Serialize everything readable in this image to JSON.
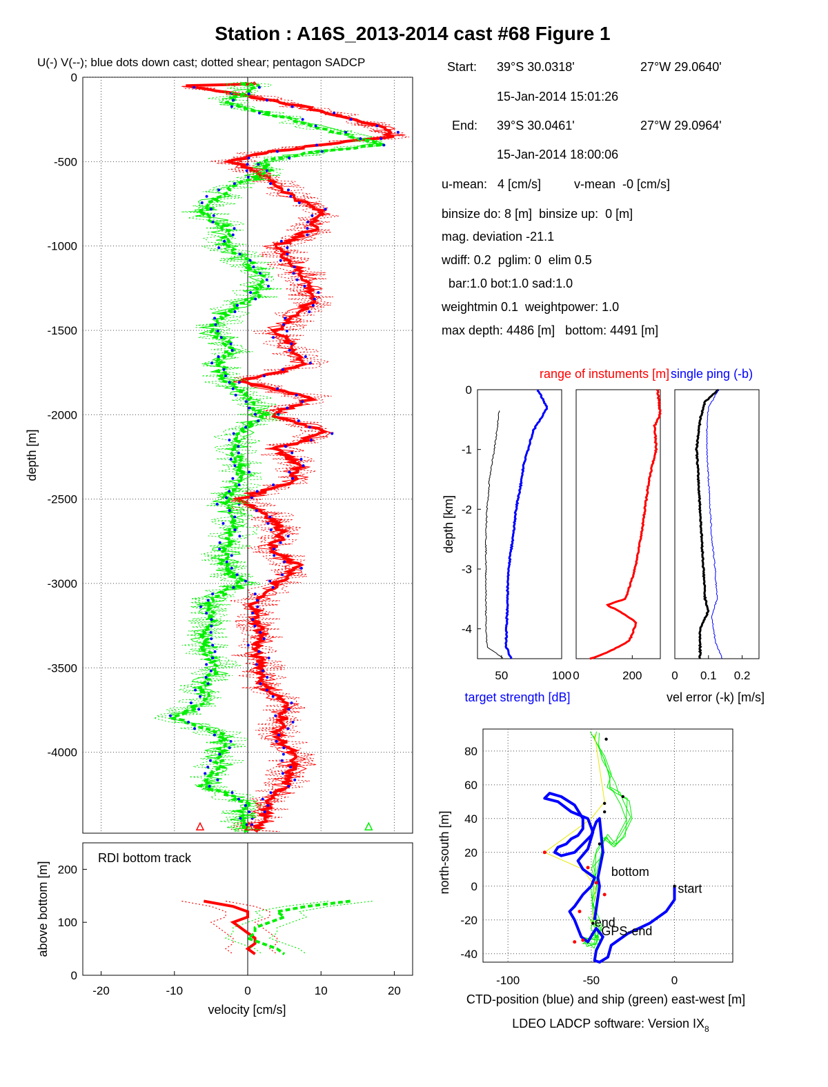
{
  "title": "Station : A16S_2013-2014 cast #68  Figure 1",
  "colors": {
    "u": "#ff0000",
    "v": "#00ee00",
    "blue": "#0000ff",
    "black": "#000000",
    "yellow": "#e8e800"
  },
  "info": {
    "lines": [
      "binsize do: 8 [m]  binsize up:  0 [m]",
      "mag. deviation -21.1",
      "wdiff: 0.2  pglim: 0  elim 0.5",
      "  bar:1.0 bot:1.0 sad:1.0",
      "weightmin 0.1  weightpower: 1.0",
      "max depth: 4486 [m]   bottom: 4491 [m]"
    ],
    "start_label": "Start:",
    "start_lat": "39°S 30.0318'",
    "start_lon": "27°W 29.0640'",
    "start_time": "15-Jan-2014 15:01:26",
    "end_label": "End:",
    "end_lat": "39°S 30.0461'",
    "end_lon": "27°W 29.0964'",
    "end_time": "15-Jan-2014 18:00:06",
    "u_mean": "u-mean:   4 [cm/s]",
    "v_mean": "v-mean  -0 [cm/s]"
  },
  "footer": "LDEO LADCP software: Version IX",
  "footer_sub": "8",
  "chart_data": [
    {
      "type": "line",
      "title": "U(-) V(--); blue dots down cast; dotted shear; pentagon SADCP",
      "xlabel": "",
      "ylabel": "depth [m]",
      "xlim": [
        -22.5,
        22.5
      ],
      "ylim": [
        -4480,
        0
      ],
      "yticks": [
        0,
        -500,
        -1000,
        -1500,
        -2000,
        -2500,
        -3000,
        -3500,
        -4000
      ],
      "grid": true,
      "series": [
        {
          "name": "U",
          "color": "#ff0000",
          "depth": [
            -50,
            -150,
            -250,
            -300,
            -350,
            -400,
            -450,
            -500,
            -550,
            -700,
            -800,
            -900,
            -1000,
            -1100,
            -1200,
            -1300,
            -1400,
            -1500,
            -1600,
            -1700,
            -1800,
            -1900,
            -2000,
            -2100,
            -2200,
            -2300,
            -2400,
            -2500,
            -2600,
            -2700,
            -2800,
            -2900,
            -3000,
            -3100,
            -3200,
            -3300,
            -3400,
            -3500,
            -3600,
            -3700,
            -3800,
            -3900,
            -4000,
            -4100,
            -4200,
            -4300,
            -4400,
            -4460
          ],
          "values": [
            -8,
            5,
            15,
            18,
            20,
            10,
            2,
            -2,
            1,
            6,
            10,
            9,
            4,
            6,
            8,
            9,
            7,
            4,
            6,
            8,
            -1,
            9,
            3,
            11,
            4,
            7,
            6,
            -1,
            3,
            5,
            3,
            7,
            4,
            1,
            1,
            2,
            1,
            2,
            2,
            5,
            5,
            4,
            6,
            6,
            5,
            3,
            2,
            1
          ]
        },
        {
          "name": "V",
          "color": "#00ee00",
          "depth": [
            -50,
            -150,
            -250,
            -300,
            -350,
            -400,
            -450,
            -500,
            -550,
            -700,
            -800,
            -900,
            -1000,
            -1100,
            -1200,
            -1300,
            -1400,
            -1500,
            -1600,
            -1700,
            -1800,
            -1900,
            -2000,
            -2100,
            -2200,
            -2300,
            -2400,
            -2500,
            -2600,
            -2700,
            -2800,
            -2900,
            -3000,
            -3100,
            -3200,
            -3300,
            -3400,
            -3500,
            -3600,
            -3700,
            -3800,
            -3900,
            -4000,
            -4100,
            -4200,
            -4300,
            -4400,
            -4460
          ],
          "values": [
            1,
            -3,
            6,
            10,
            14,
            18,
            8,
            2,
            3,
            -4,
            -6,
            -3,
            -3,
            0,
            2,
            1,
            -3,
            -5,
            -2,
            -4,
            -3,
            0,
            2,
            -1,
            -2,
            -1,
            -1,
            -3,
            -2,
            -2,
            -3,
            -3,
            -1,
            -5,
            -5,
            -6,
            -6,
            -4,
            -6,
            -6,
            -10,
            -3,
            -4,
            -4,
            -6,
            0,
            -1,
            0
          ]
        }
      ]
    },
    {
      "type": "line",
      "title": "RDI bottom track",
      "xlabel": "velocity [cm/s]",
      "ylabel": "above bottom [m]",
      "xlim": [
        -22.5,
        22.5
      ],
      "ylim": [
        0,
        250
      ],
      "xticks": [
        -20,
        -10,
        0,
        10,
        20
      ],
      "yticks": [
        0,
        100,
        200
      ],
      "series": [
        {
          "name": "U",
          "color": "#ff0000",
          "height": [
            140,
            130,
            120,
            110,
            100,
            90,
            80,
            70,
            60,
            50,
            40
          ],
          "values": [
            -6,
            -2,
            0,
            0,
            -2,
            -1,
            0,
            1,
            1,
            0,
            1
          ]
        },
        {
          "name": "V",
          "color": "#00ee00",
          "height": [
            140,
            130,
            120,
            110,
            100,
            90,
            80,
            70,
            60,
            50,
            40
          ],
          "values": [
            14,
            8,
            4,
            5,
            3,
            1,
            1,
            0,
            2,
            4,
            5
          ]
        }
      ]
    },
    {
      "type": "line",
      "title": "",
      "xlabel": "target strength [dB]",
      "ylabel": "depth [km]",
      "xlim": [
        30,
        100
      ],
      "ylim": [
        -4.5,
        0
      ],
      "xticks": [
        50,
        100
      ],
      "yticks": [
        0,
        -1,
        -2,
        -3,
        -4
      ],
      "series": [
        {
          "name": "",
          "color": "#0000ff",
          "depth": [
            0,
            -0.3,
            -0.7,
            -1.0,
            -1.3,
            -1.6,
            -2.0,
            -2.4,
            -2.8,
            -3.2,
            -3.6,
            -4.0,
            -4.3,
            -4.5
          ],
          "values": [
            80,
            88,
            76,
            72,
            68,
            66,
            62,
            60,
            57,
            55,
            55,
            54,
            54,
            58
          ]
        },
        {
          "name": "",
          "color": "#000000",
          "depth": [
            -0.35,
            -0.7,
            -1.0,
            -1.5,
            -2.0,
            -2.5,
            -3.0,
            -3.5,
            -4.0,
            -4.3,
            -4.5
          ],
          "values": [
            48,
            46,
            44,
            40,
            38,
            37,
            37,
            37,
            37,
            38,
            52
          ]
        }
      ]
    },
    {
      "type": "line",
      "title": "range of instuments [m]",
      "xlabel": "",
      "ylabel": "",
      "xlim": [
        0,
        300
      ],
      "ylim": [
        -4.5,
        0
      ],
      "xticks": [
        0,
        200
      ],
      "series": [
        {
          "name": "",
          "color": "#ff0000",
          "depth": [
            0,
            -0.4,
            -0.6,
            -1.0,
            -1.5,
            -2.0,
            -2.5,
            -3.0,
            -3.3,
            -3.5,
            -3.6,
            -3.75,
            -3.9,
            -4.2,
            -4.4,
            -4.5
          ],
          "values": [
            290,
            300,
            280,
            285,
            260,
            245,
            230,
            210,
            190,
            175,
            110,
            170,
            215,
            190,
            110,
            50
          ]
        }
      ]
    },
    {
      "type": "line",
      "title": "single ping (-b)",
      "xlabel": "vel error (-k) [m/s]",
      "ylabel": "",
      "xlim": [
        0,
        0.25
      ],
      "ylim": [
        -4.5,
        0
      ],
      "xticks": [
        0,
        0.1,
        0.2
      ],
      "series": [
        {
          "name": "",
          "color": "#000000",
          "depth": [
            0,
            -0.2,
            -0.5,
            -1.0,
            -1.5,
            -2.0,
            -2.5,
            -3.0,
            -3.5,
            -3.7,
            -4.0,
            -4.5
          ],
          "values": [
            0.13,
            0.09,
            0.075,
            0.065,
            0.07,
            0.075,
            0.08,
            0.085,
            0.09,
            0.1,
            0.075,
            0.075
          ]
        },
        {
          "name": "",
          "color": "#0000ff",
          "depth": [
            0,
            -0.3,
            -0.7,
            -1.0,
            -1.5,
            -2.0,
            -2.5,
            -3.0,
            -3.5,
            -3.8,
            -4.2,
            -4.5
          ],
          "values": [
            0.13,
            0.1,
            0.095,
            0.095,
            0.1,
            0.105,
            0.11,
            0.12,
            0.125,
            0.11,
            0.12,
            0.14
          ]
        }
      ]
    },
    {
      "type": "line",
      "title": "",
      "xlabel": "CTD-position (blue) and ship (green) east-west [m]",
      "ylabel": "north-south [m]",
      "xlim": [
        -115,
        35
      ],
      "ylim": [
        -45,
        93
      ],
      "xticks": [
        -100,
        -50,
        0
      ],
      "yticks": [
        80,
        60,
        40,
        20,
        0,
        -20,
        -40
      ],
      "series": [
        {
          "name": "",
          "color": "#0000ff",
          "x": [
            0,
            0,
            -5,
            -15,
            -28,
            -38,
            -40,
            -45,
            -48,
            -47,
            -43,
            -47,
            -49,
            -52,
            -56,
            -60,
            -63,
            -60,
            -55,
            -50,
            -48,
            -55,
            -58,
            -52,
            -49,
            -52,
            -62,
            -70,
            -78,
            -75,
            -68,
            -60,
            -55,
            -55,
            -58,
            -62,
            -65,
            -70,
            -72,
            -68,
            -60,
            -55,
            -50,
            -47,
            -45,
            -43,
            -46,
            -45,
            -48
          ],
          "y": [
            0,
            -8,
            -15,
            -22,
            -28,
            -35,
            -42,
            -45,
            -44,
            -38,
            -30,
            -25,
            -28,
            -33,
            -30,
            -20,
            -15,
            -12,
            -5,
            0,
            5,
            10,
            15,
            22,
            32,
            40,
            44,
            50,
            52,
            55,
            53,
            48,
            40,
            34,
            30,
            28,
            25,
            23,
            20,
            18,
            20,
            25,
            30,
            38,
            40,
            20,
            5,
            0,
            -20
          ]
        },
        {
          "name": "",
          "color": "#00ee00",
          "x": [
            -48,
            -45,
            -42,
            -40,
            -38,
            -35,
            -30,
            -28,
            -32,
            -38,
            -42,
            -45,
            -47,
            -49,
            -50,
            -48,
            -46,
            -44,
            -50,
            -53,
            -50,
            -45,
            -48,
            -50
          ],
          "y": [
            90,
            85,
            75,
            65,
            60,
            55,
            50,
            40,
            30,
            25,
            30,
            20,
            10,
            0,
            -10,
            -20,
            -25,
            -30,
            -30,
            -32,
            -35,
            -32,
            -25,
            -20
          ]
        },
        {
          "name": "",
          "color": "#e8e800",
          "x": [
            -48,
            -45,
            -42,
            -50,
            -78,
            -55,
            -48,
            -47,
            -50
          ],
          "y": [
            90,
            70,
            50,
            40,
            20,
            10,
            0,
            -10,
            -22
          ]
        }
      ],
      "annotations": [
        "start",
        "bottom",
        "end",
        "GPS-end"
      ]
    }
  ]
}
